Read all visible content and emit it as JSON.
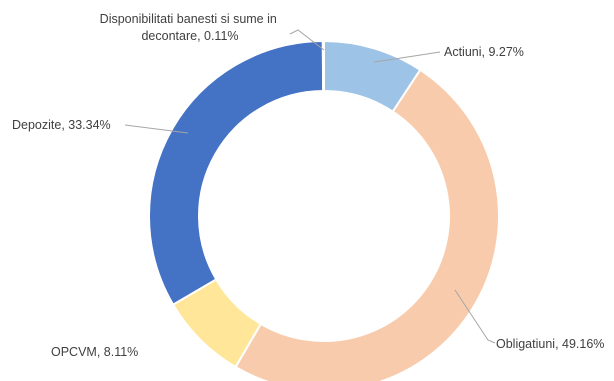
{
  "chart_data": {
    "type": "pie",
    "variant": "doughnut",
    "title": "",
    "legend": "none",
    "start_angle_deg": 0,
    "direction": "clockwise",
    "slices": [
      {
        "name": "Actiuni",
        "value": 9.27,
        "label": "Actiuni, 9.27%",
        "color": "#9dc3e6"
      },
      {
        "name": "Obligatiuni",
        "value": 49.16,
        "label": "Obligatiuni, 49.16%",
        "color": "#f8cbad"
      },
      {
        "name": "OPCVM",
        "value": 8.11,
        "label": "OPCVM, 8.11%",
        "color": "#ffe699"
      },
      {
        "name": "Depozite",
        "value": 33.34,
        "label": "Depozite, 33.34%",
        "color": "#4472c4"
      },
      {
        "name": "Disponibilitati banesti si sume in decontare",
        "value": 0.11,
        "label_lines": [
          "Disponibilitati banesti si sume in",
          "decontare, 0.11%"
        ],
        "color": "#a5a5a5"
      }
    ]
  }
}
